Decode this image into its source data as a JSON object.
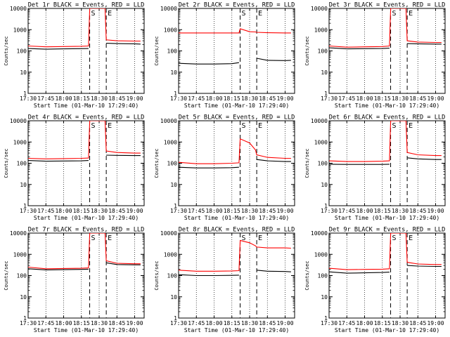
{
  "chart_data": [
    {
      "type": "line",
      "title": "Det 1r BLACK = Events, RED = LLD",
      "xlabel": "Start Time (01-Mar-10 17:29:40)",
      "ylabel": "Counts/sec",
      "yscale": "log",
      "ylim": [
        1,
        10000
      ],
      "xticks": [
        "17:30",
        "17:45",
        "18:00",
        "18:15",
        "18:30",
        "18:45",
        "19:00"
      ],
      "yticks": [
        "1",
        "10",
        "100",
        "1000",
        "10000"
      ],
      "markers": [
        {
          "label": "S",
          "time": "18:22"
        },
        {
          "label": "E",
          "time": "18:36"
        }
      ],
      "series": [
        {
          "name": "Events",
          "color": "#000000",
          "x": [
            "17:30",
            "17:45",
            "18:00",
            "18:15",
            "18:21",
            "18:22",
            "18:30",
            "18:35",
            "18:36",
            "18:45",
            "19:00",
            "19:05"
          ],
          "values": [
            130,
            120,
            125,
            128,
            130,
            null,
            null,
            null,
            230,
            220,
            215,
            210
          ]
        },
        {
          "name": "LLD",
          "color": "#ff0000",
          "x": [
            "17:30",
            "17:45",
            "18:00",
            "18:15",
            "18:21",
            "18:22",
            "18:30",
            "18:35",
            "18:36",
            "18:45",
            "19:00",
            "19:05"
          ],
          "values": [
            170,
            155,
            160,
            165,
            170,
            10000,
            10000,
            10000,
            330,
            300,
            290,
            290
          ]
        }
      ]
    },
    {
      "type": "line",
      "title": "Det 2r BLACK = Events, RED = LLD",
      "xlabel": "Start Time (01-Mar-10 17:29:40)",
      "ylabel": "Counts/sec",
      "yscale": "log",
      "ylim": [
        1,
        10000
      ],
      "xticks": [
        "17:30",
        "17:45",
        "18:00",
        "18:15",
        "18:30",
        "18:45",
        "19:00"
      ],
      "yticks": [
        "1",
        "10",
        "100",
        "1000",
        "10000"
      ],
      "markers": [
        {
          "label": "S",
          "time": "18:22"
        },
        {
          "label": "E",
          "time": "18:36"
        }
      ],
      "series": [
        {
          "name": "Events",
          "color": "#000000",
          "x": [
            "17:30",
            "17:45",
            "18:00",
            "18:15",
            "18:21",
            "18:22",
            "18:30",
            "18:35",
            "18:36",
            "18:45",
            "19:00",
            "19:05"
          ],
          "values": [
            26,
            24,
            24,
            25,
            28,
            null,
            null,
            null,
            45,
            36,
            35,
            36
          ]
        },
        {
          "name": "LLD",
          "color": "#ff0000",
          "x": [
            "17:30",
            "17:45",
            "18:00",
            "18:15",
            "18:21",
            "18:22",
            "18:30",
            "18:35",
            "18:36",
            "18:45",
            "19:00",
            "19:05"
          ],
          "values": [
            700,
            700,
            700,
            700,
            700,
            1100,
            800,
            780,
            750,
            720,
            700,
            700
          ]
        }
      ]
    },
    {
      "type": "line",
      "title": "Det 3r BLACK = Events, RED = LLD",
      "xlabel": "Start Time (01-Mar-10 17:29:40)",
      "ylabel": "Counts/sec",
      "yscale": "log",
      "ylim": [
        1,
        10000
      ],
      "xticks": [
        "17:30",
        "17:45",
        "18:00",
        "18:15",
        "18:30",
        "18:45",
        "19:00"
      ],
      "yticks": [
        "1",
        "10",
        "100",
        "1000",
        "10000"
      ],
      "markers": [
        {
          "label": "S",
          "time": "18:22"
        },
        {
          "label": "E",
          "time": "18:36"
        }
      ],
      "series": [
        {
          "name": "Events",
          "color": "#000000",
          "x": [
            "17:30",
            "17:45",
            "18:00",
            "18:15",
            "18:21",
            "18:22",
            "18:30",
            "18:35",
            "18:36",
            "18:45",
            "19:00",
            "19:05"
          ],
          "values": [
            140,
            125,
            128,
            130,
            135,
            null,
            null,
            null,
            220,
            215,
            210,
            210
          ]
        },
        {
          "name": "LLD",
          "color": "#ff0000",
          "x": [
            "17:30",
            "17:45",
            "18:00",
            "18:15",
            "18:21",
            "18:22",
            "18:30",
            "18:35",
            "18:36",
            "18:45",
            "19:00",
            "19:05"
          ],
          "values": [
            170,
            150,
            155,
            160,
            170,
            10000,
            10000,
            10000,
            300,
            260,
            250,
            250
          ]
        }
      ]
    },
    {
      "type": "line",
      "title": "Det 4r BLACK = Events, RED = LLD",
      "xlabel": "Start Time (01-Mar-10 17:29:40)",
      "ylabel": "Counts/sec",
      "yscale": "log",
      "ylim": [
        1,
        10000
      ],
      "xticks": [
        "17:30",
        "17:45",
        "18:00",
        "18:15",
        "18:30",
        "18:45",
        "19:00"
      ],
      "yticks": [
        "1",
        "10",
        "100",
        "1000",
        "10000"
      ],
      "markers": [
        {
          "label": "S",
          "time": "18:22"
        },
        {
          "label": "E",
          "time": "18:36"
        }
      ],
      "series": [
        {
          "name": "Events",
          "color": "#000000",
          "x": [
            "17:30",
            "17:45",
            "18:00",
            "18:15",
            "18:21",
            "18:22",
            "18:30",
            "18:35",
            "18:36",
            "18:45",
            "19:00",
            "19:05"
          ],
          "values": [
            135,
            125,
            128,
            130,
            135,
            null,
            null,
            null,
            240,
            235,
            230,
            230
          ]
        },
        {
          "name": "LLD",
          "color": "#ff0000",
          "x": [
            "17:30",
            "17:45",
            "18:00",
            "18:15",
            "18:21",
            "18:22",
            "18:30",
            "18:35",
            "18:36",
            "18:45",
            "19:00",
            "19:05"
          ],
          "values": [
            170,
            160,
            165,
            170,
            175,
            10000,
            10000,
            10000,
            380,
            320,
            300,
            300
          ]
        }
      ]
    },
    {
      "type": "line",
      "title": "Det 5r BLACK = Events, RED = LLD",
      "xlabel": "Start Time (01-Mar-10 17:29:40)",
      "ylabel": "Counts/sec",
      "yscale": "log",
      "ylim": [
        1,
        10000
      ],
      "xticks": [
        "17:30",
        "17:45",
        "18:00",
        "18:15",
        "18:30",
        "18:45",
        "19:00"
      ],
      "yticks": [
        "1",
        "10",
        "100",
        "1000",
        "10000"
      ],
      "markers": [
        {
          "label": "S",
          "time": "18:22"
        },
        {
          "label": "E",
          "time": "18:36"
        }
      ],
      "series": [
        {
          "name": "Events",
          "color": "#000000",
          "x": [
            "17:30",
            "17:45",
            "18:00",
            "18:15",
            "18:21",
            "18:22",
            "18:30",
            "18:35",
            "18:36",
            "18:45",
            "19:00",
            "19:05"
          ],
          "values": [
            65,
            60,
            60,
            62,
            65,
            null,
            null,
            null,
            150,
            130,
            120,
            120
          ]
        },
        {
          "name": "LLD",
          "color": "#ff0000",
          "x": [
            "17:30",
            "17:45",
            "18:00",
            "18:15",
            "18:21",
            "18:22",
            "18:30",
            "18:35",
            "18:36",
            "18:45",
            "19:00",
            "19:05"
          ],
          "values": [
            110,
            95,
            95,
            100,
            105,
            1400,
            900,
            420,
            250,
            190,
            170,
            170
          ]
        }
      ]
    },
    {
      "type": "line",
      "title": "Det 6r BLACK = Events, RED = LLD",
      "xlabel": "Start Time (01-Mar-10 17:29:40)",
      "ylabel": "Counts/sec",
      "yscale": "log",
      "ylim": [
        1,
        10000
      ],
      "xticks": [
        "17:30",
        "17:45",
        "18:00",
        "18:15",
        "18:30",
        "18:45",
        "19:00"
      ],
      "yticks": [
        "1",
        "10",
        "100",
        "1000",
        "10000"
      ],
      "markers": [
        {
          "label": "S",
          "time": "18:22"
        },
        {
          "label": "E",
          "time": "18:36"
        }
      ],
      "series": [
        {
          "name": "Events",
          "color": "#000000",
          "x": [
            "17:30",
            "17:45",
            "18:00",
            "18:15",
            "18:21",
            "18:22",
            "18:30",
            "18:35",
            "18:36",
            "18:45",
            "19:00",
            "19:05"
          ],
          "values": [
            90,
            88,
            88,
            88,
            90,
            null,
            null,
            null,
            180,
            160,
            150,
            150
          ]
        },
        {
          "name": "LLD",
          "color": "#ff0000",
          "x": [
            "17:30",
            "17:45",
            "18:00",
            "18:15",
            "18:21",
            "18:22",
            "18:30",
            "18:35",
            "18:36",
            "18:45",
            "19:00",
            "19:05"
          ],
          "values": [
            130,
            120,
            120,
            125,
            130,
            10000,
            10000,
            10000,
            320,
            250,
            230,
            230
          ]
        }
      ]
    },
    {
      "type": "line",
      "title": "Det 7r BLACK = Events, RED = LLD",
      "xlabel": "Start Time (01-Mar-10 17:29:40)",
      "ylabel": "Counts/sec",
      "yscale": "log",
      "ylim": [
        1,
        10000
      ],
      "xticks": [
        "17:30",
        "17:45",
        "18:00",
        "18:15",
        "18:30",
        "18:45",
        "19:00"
      ],
      "yticks": [
        "1",
        "10",
        "100",
        "1000",
        "10000"
      ],
      "markers": [
        {
          "label": "S",
          "time": "18:22"
        },
        {
          "label": "E",
          "time": "18:36"
        }
      ],
      "series": [
        {
          "name": "Events",
          "color": "#000000",
          "x": [
            "17:30",
            "17:45",
            "18:00",
            "18:15",
            "18:21",
            "18:22",
            "18:30",
            "18:35",
            "18:36",
            "18:45",
            "19:00",
            "19:05"
          ],
          "values": [
            210,
            185,
            190,
            195,
            200,
            null,
            null,
            null,
            400,
            330,
            320,
            320
          ]
        },
        {
          "name": "LLD",
          "color": "#ff0000",
          "x": [
            "17:30",
            "17:45",
            "18:00",
            "18:15",
            "18:21",
            "18:22",
            "18:30",
            "18:35",
            "18:36",
            "18:45",
            "19:00",
            "19:05"
          ],
          "values": [
            250,
            210,
            215,
            220,
            230,
            10000,
            10000,
            10000,
            500,
            380,
            360,
            360
          ]
        }
      ]
    },
    {
      "type": "line",
      "title": "Det 8r BLACK = Events, RED = LLD",
      "xlabel": "Start Time (01-Mar-10 17:29:40)",
      "ylabel": "Counts/sec",
      "yscale": "log",
      "ylim": [
        1,
        10000
      ],
      "xticks": [
        "17:30",
        "17:45",
        "18:00",
        "18:15",
        "18:30",
        "18:45",
        "19:00"
      ],
      "yticks": [
        "1",
        "10",
        "100",
        "1000",
        "10000"
      ],
      "markers": [
        {
          "label": "S",
          "time": "18:22"
        },
        {
          "label": "E",
          "time": "18:36"
        }
      ],
      "series": [
        {
          "name": "Events",
          "color": "#000000",
          "x": [
            "17:30",
            "17:45",
            "18:00",
            "18:15",
            "18:21",
            "18:22",
            "18:30",
            "18:35",
            "18:36",
            "18:45",
            "19:00",
            "19:05"
          ],
          "values": [
            110,
            100,
            100,
            102,
            105,
            null,
            null,
            null,
            180,
            160,
            155,
            150
          ]
        },
        {
          "name": "LLD",
          "color": "#ff0000",
          "x": [
            "17:30",
            "17:45",
            "18:00",
            "18:15",
            "18:21",
            "18:22",
            "18:30",
            "18:35",
            "18:36",
            "18:45",
            "19:00",
            "19:05"
          ],
          "values": [
            180,
            160,
            160,
            165,
            170,
            4500,
            3500,
            2500,
            2200,
            2000,
            2000,
            1950
          ]
        }
      ]
    },
    {
      "type": "line",
      "title": "Det 9r BLACK = Events, RED = LLD",
      "xlabel": "Start Time (01-Mar-10 17:29:40)",
      "ylabel": "Counts/sec",
      "yscale": "log",
      "ylim": [
        1,
        10000
      ],
      "xticks": [
        "17:30",
        "17:45",
        "18:00",
        "18:15",
        "18:30",
        "18:45",
        "19:00"
      ],
      "yticks": [
        "1",
        "10",
        "100",
        "1000",
        "10000"
      ],
      "markers": [
        {
          "label": "S",
          "time": "18:22"
        },
        {
          "label": "E",
          "time": "18:36"
        }
      ],
      "series": [
        {
          "name": "Events",
          "color": "#000000",
          "x": [
            "17:30",
            "17:45",
            "18:00",
            "18:15",
            "18:21",
            "18:22",
            "18:30",
            "18:35",
            "18:36",
            "18:45",
            "19:00",
            "19:05"
          ],
          "values": [
            150,
            130,
            135,
            140,
            145,
            null,
            null,
            null,
            300,
            280,
            270,
            270
          ]
        },
        {
          "name": "LLD",
          "color": "#ff0000",
          "x": [
            "17:30",
            "17:45",
            "18:00",
            "18:15",
            "18:21",
            "18:22",
            "18:30",
            "18:35",
            "18:36",
            "18:45",
            "19:00",
            "19:05"
          ],
          "values": [
            220,
            190,
            195,
            200,
            210,
            10000,
            10000,
            10000,
            420,
            350,
            330,
            330
          ]
        }
      ]
    }
  ]
}
